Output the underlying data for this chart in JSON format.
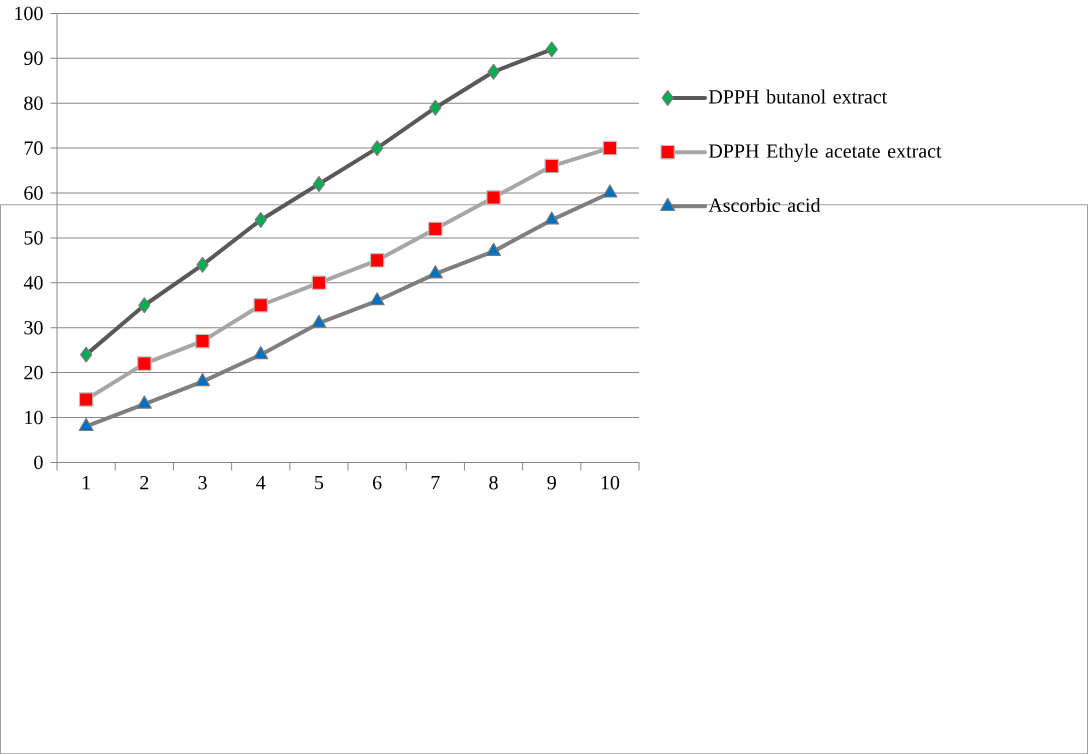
{
  "chart_data": {
    "type": "line",
    "categories": [
      "1",
      "2",
      "3",
      "4",
      "5",
      "6",
      "7",
      "8",
      "9",
      "10"
    ],
    "ylim": [
      0,
      100
    ],
    "yticks": [
      0,
      10,
      20,
      30,
      40,
      50,
      60,
      70,
      80,
      90,
      100
    ],
    "grid": "y",
    "legend": "right",
    "series": [
      {
        "name": "DPPH butanol extract",
        "color": "#595959",
        "marker": "diamond",
        "colors": [
          "#00b050",
          "#00b050",
          "#00b050",
          "#00b050",
          "#00b050",
          "#00b050",
          "#00b050",
          "#00b050",
          "#00b050",
          "#00b050"
        ],
        "values": [
          24,
          35,
          44,
          54,
          62,
          70,
          79,
          87,
          92,
          null
        ]
      },
      {
        "name": "DPPH Ethyle acetate extract",
        "color": "#a6a6a6",
        "marker": "square",
        "colors": [
          "#ff0000",
          "#ff0000",
          "#ff0000",
          "#ff0000",
          "#ff0000",
          "#ff0000",
          "#ff0000",
          "#ff0000",
          "#ff0000",
          "#ff0000"
        ],
        "values": [
          14,
          22,
          27,
          35,
          40,
          45,
          52,
          59,
          66,
          70
        ]
      },
      {
        "name": "Ascorbic acid",
        "color": "#7f7f7f",
        "marker": "triangle",
        "colors": [
          "#0070c0",
          "#0070c0",
          "#0070c0",
          "#0070c0",
          "#0070c0",
          "#0070c0",
          "#0070c0",
          "#0070c0",
          "#0070c0",
          "#0070c0"
        ],
        "values": [
          8,
          13,
          18,
          24,
          31,
          36,
          42,
          47,
          54,
          60
        ]
      }
    ]
  }
}
